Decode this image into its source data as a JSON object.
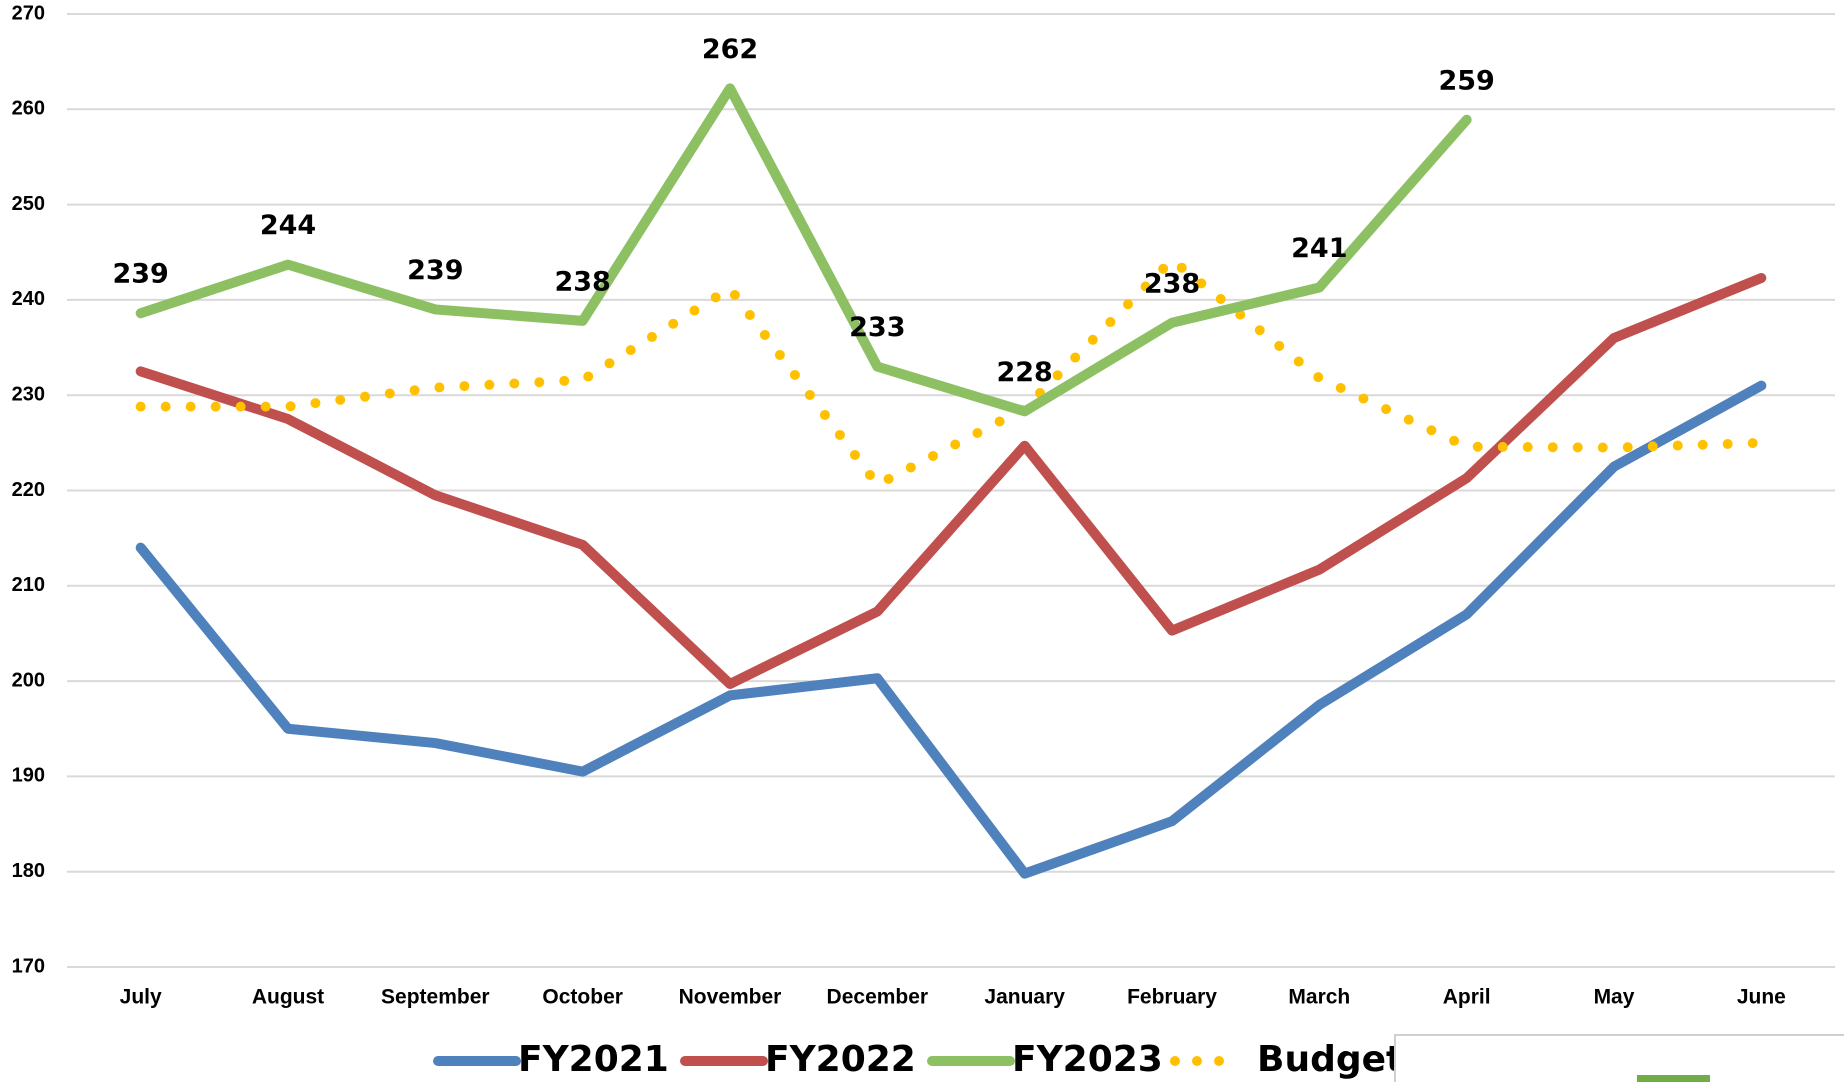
{
  "chart_data": {
    "type": "line",
    "categories": [
      "July",
      "August",
      "September",
      "October",
      "November",
      "December",
      "January",
      "February",
      "March",
      "April",
      "May",
      "June"
    ],
    "series": [
      {
        "name": "FY2021",
        "color": "#4f81bd",
        "values": [
          214,
          195,
          193.5,
          190.5,
          198.5,
          200.3,
          179.8,
          185.3,
          197.5,
          207,
          222.5,
          231
        ]
      },
      {
        "name": "FY2022",
        "color": "#c0504d",
        "values": [
          232.5,
          227.5,
          219.5,
          214.3,
          199.7,
          207.3,
          224.7,
          205.3,
          211.7,
          221.3,
          236,
          242.3
        ]
      },
      {
        "name": "FY2023",
        "color": "#8cc063",
        "values": [
          238.6,
          243.7,
          239,
          237.8,
          262.2,
          233,
          228.3,
          237.6,
          241.3,
          258.9,
          null,
          null
        ],
        "value_labels": [
          "239",
          "244",
          "239",
          "238",
          "262",
          "233",
          "228",
          "238",
          "241",
          "259",
          null,
          null
        ]
      },
      {
        "name": "Budget",
        "color": "#ffc000",
        "style": "dotted",
        "values": [
          228.8,
          228.8,
          230.8,
          231.6,
          241.2,
          220.6,
          228.6,
          244.2,
          231.8,
          224.6,
          224.5,
          225
        ]
      }
    ],
    "ylim": [
      170,
      270
    ],
    "yticks": [
      170,
      180,
      190,
      200,
      210,
      220,
      230,
      240,
      250,
      260,
      270
    ],
    "grid": true,
    "legend": "bottom"
  }
}
